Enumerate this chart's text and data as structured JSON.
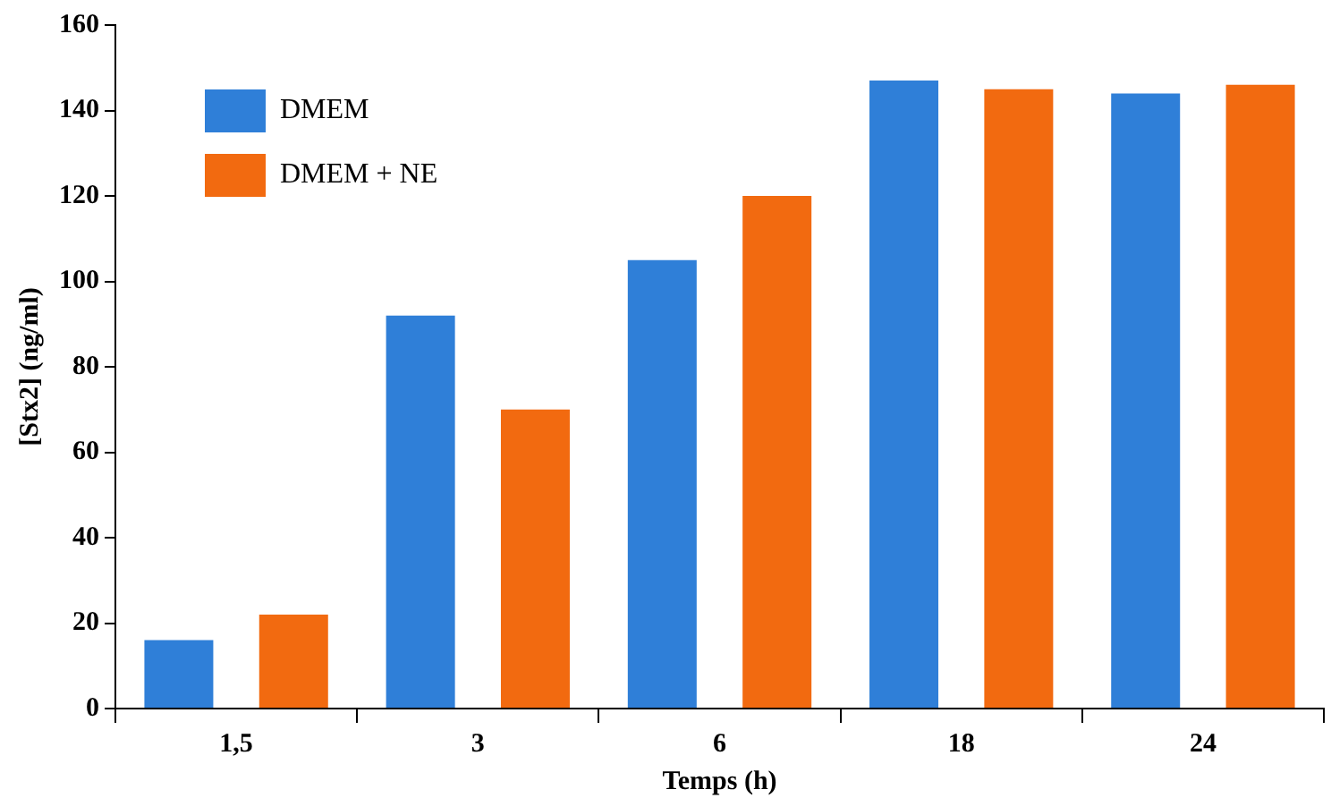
{
  "chart_data": {
    "type": "bar",
    "xlabel": "Temps (h)",
    "ylabel": "[Stx2] (ng/ml)",
    "categories": [
      "1,5",
      "3",
      "6",
      "18",
      "24"
    ],
    "series": [
      {
        "name": "DMEM",
        "color": "#2f7fd8",
        "values": [
          16,
          92,
          105,
          147,
          144
        ]
      },
      {
        "name": "DMEM + NE",
        "color": "#f26a10",
        "values": [
          22,
          70,
          120,
          145,
          146
        ]
      }
    ],
    "ylim": [
      0,
      160
    ],
    "yticks": [
      0,
      20,
      40,
      60,
      80,
      100,
      120,
      140,
      160
    ],
    "grid": false,
    "legend": "top left"
  }
}
